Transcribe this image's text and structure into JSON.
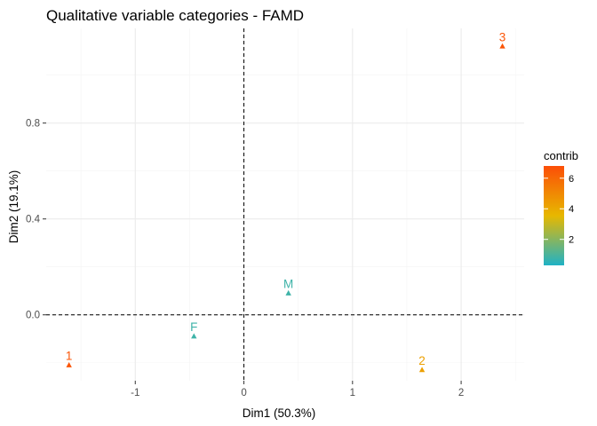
{
  "chart_data": {
    "type": "scatter",
    "title": "Qualitative variable categories - FAMD",
    "xlabel": "Dim1 (50.3%)",
    "ylabel": "Dim2 (19.1%)",
    "xlim": [
      -1.82,
      2.58
    ],
    "ylim": [
      -0.275,
      1.195
    ],
    "x_ticks": [
      -1,
      0,
      1,
      2
    ],
    "y_ticks": [
      0.0,
      0.4,
      0.8
    ],
    "x_tick_labels": [
      "-1",
      "0",
      "1",
      "2"
    ],
    "y_tick_labels": [
      "0.0",
      "0.4",
      "0.8"
    ],
    "grid": true,
    "reference_lines": {
      "x": 0,
      "y": 0,
      "style": "dashed"
    },
    "points": [
      {
        "label": "3",
        "x": 2.38,
        "y": 1.12,
        "contrib": 6.6
      },
      {
        "label": "M",
        "x": 0.41,
        "y": 0.09,
        "contrib": 0.8
      },
      {
        "label": "F",
        "x": -0.46,
        "y": -0.09,
        "contrib": 0.8
      },
      {
        "label": "1",
        "x": -1.61,
        "y": -0.21,
        "contrib": 6.6
      },
      {
        "label": "2",
        "x": 1.64,
        "y": -0.23,
        "contrib": 4.3
      }
    ],
    "legend": {
      "title": "contrib",
      "placement": "right",
      "min": 0.3,
      "max": 6.8,
      "ticks": [
        2,
        4,
        6
      ],
      "tick_labels": [
        "2",
        "4",
        "6"
      ],
      "colors": [
        "#1fb2c6",
        "#e7b800",
        "#fc4e07"
      ]
    }
  }
}
